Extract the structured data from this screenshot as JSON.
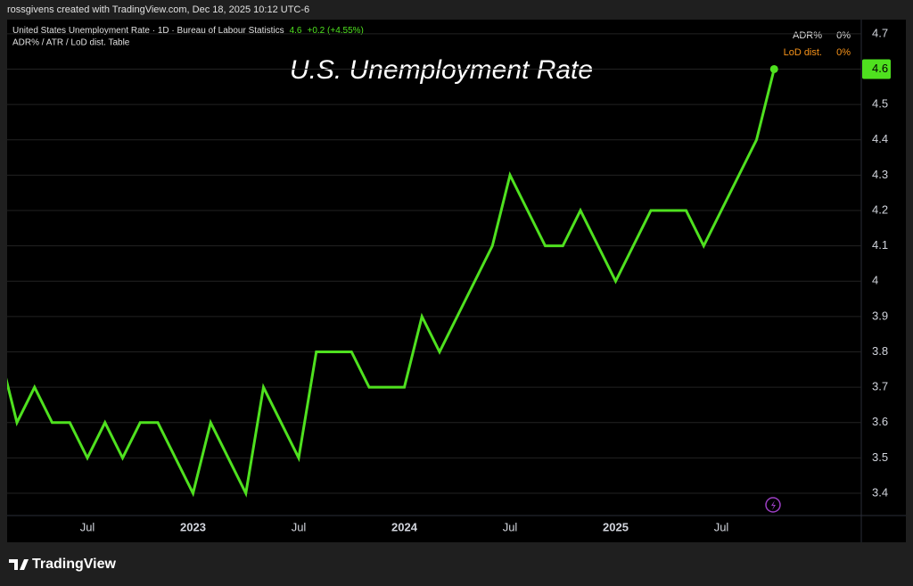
{
  "header": "rossgivens created with TradingView.com, Dec 18, 2025 10:12 UTC-6",
  "legend": {
    "name": "United States Unemployment Rate · 1D · Bureau of Labour Statistics",
    "value": "4.6",
    "change": "+0.2 (+4.55%)",
    "indicator": "ADR% / ATR / LoD dist. Table"
  },
  "table": {
    "rows": [
      [
        "ADR%",
        "0%"
      ],
      [
        "LoD dist.",
        "0%"
      ]
    ]
  },
  "footer": "TradingView",
  "chart_data": {
    "type": "line",
    "title": "U.S. Unemployment Rate",
    "categories": [
      null,
      null,
      null,
      null,
      null,
      "Jul",
      null,
      null,
      null,
      null,
      null,
      "2023",
      null,
      null,
      null,
      null,
      null,
      "Jul",
      null,
      null,
      null,
      null,
      null,
      "2024",
      null,
      null,
      null,
      null,
      null,
      "Jul",
      null,
      null,
      null,
      null,
      null,
      "2025",
      null,
      null,
      null,
      null,
      null,
      "Jul",
      null,
      null,
      null
    ],
    "series": [
      {
        "name": "United States Unemployment Rate",
        "color": "#4fe11f",
        "values": [
          3.8,
          3.6,
          3.7,
          3.6,
          3.6,
          3.5,
          3.6,
          3.5,
          3.6,
          3.6,
          3.5,
          3.4,
          3.6,
          3.5,
          3.4,
          3.7,
          3.6,
          3.5,
          3.8,
          3.8,
          3.8,
          3.7,
          3.7,
          3.7,
          3.9,
          3.8,
          3.9,
          4.0,
          4.1,
          4.3,
          4.2,
          4.1,
          4.1,
          4.2,
          4.1,
          4.0,
          4.1,
          4.2,
          4.2,
          4.2,
          4.1,
          4.2,
          4.3,
          4.4,
          4.6
        ]
      }
    ],
    "ylim": [
      3.337,
      4.74
    ],
    "yticks": [
      3.4,
      3.5,
      3.6,
      3.7,
      3.8,
      3.9,
      4,
      4.1,
      4.2,
      4.3,
      4.4,
      4.5,
      4.6,
      4.7
    ],
    "grid": true,
    "bold_categories": [
      "2023",
      "2024",
      "2025"
    ]
  }
}
